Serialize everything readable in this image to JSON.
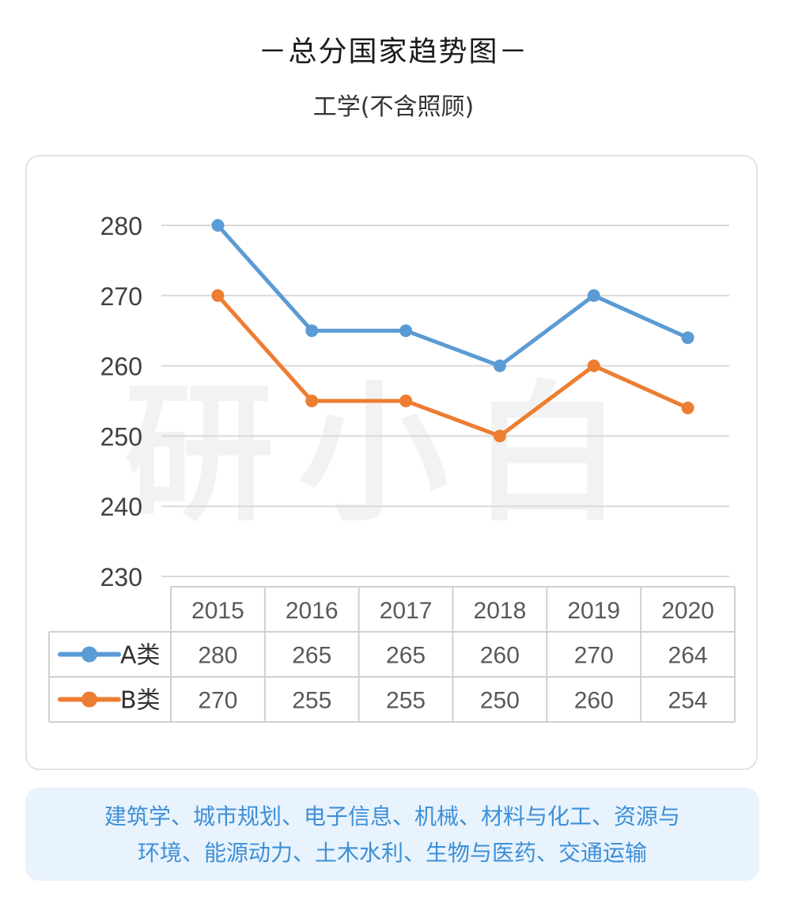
{
  "header": {
    "title": "－总分国家趋势图－",
    "subtitle": "工学(不含照顾)"
  },
  "watermark": "研小白",
  "chart_data": {
    "type": "line",
    "categories": [
      "2015",
      "2016",
      "2017",
      "2018",
      "2019",
      "2020"
    ],
    "series": [
      {
        "name": "A类",
        "values": [
          280,
          265,
          265,
          260,
          270,
          264
        ],
        "color": "#5b9bd5"
      },
      {
        "name": "B类",
        "values": [
          270,
          255,
          255,
          250,
          260,
          254
        ],
        "color": "#ed7d31"
      }
    ],
    "yticks": [
      230,
      240,
      250,
      260,
      270,
      280
    ],
    "ylim": [
      230,
      280
    ],
    "grid": true,
    "legend": "data-table"
  },
  "note": {
    "line1": "建筑学、城市规划、电子信息、机械、材料与化工、资源与",
    "line2": "环境、能源动力、土木水利、生物与医药、交通运输"
  }
}
